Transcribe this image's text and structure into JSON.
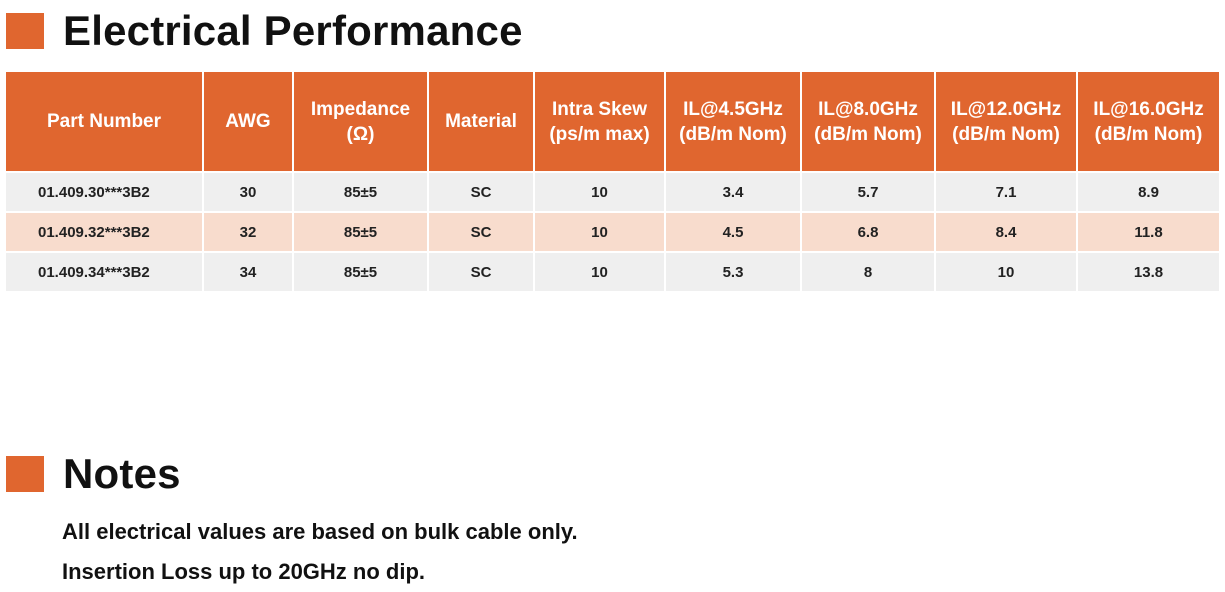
{
  "colors": {
    "accent": "#e0662f",
    "row_light": "#efefef",
    "row_accent": "#f8dccd"
  },
  "headings": {
    "electrical": "Electrical Performance",
    "notes": "Notes"
  },
  "table": {
    "headers": [
      [
        "Part Number"
      ],
      [
        "AWG"
      ],
      [
        "Impedance",
        "(Ω)"
      ],
      [
        "Material"
      ],
      [
        "Intra Skew",
        "(ps/m max)"
      ],
      [
        "IL@4.5GHz",
        "(dB/m Nom)"
      ],
      [
        "IL@8.0GHz",
        "(dB/m Nom)"
      ],
      [
        "IL@12.0GHz",
        "(dB/m Nom)"
      ],
      [
        "IL@16.0GHz",
        "(dB/m Nom)"
      ]
    ],
    "rows": [
      [
        "01.409.30***3B2",
        "30",
        "85±5",
        "SC",
        "10",
        "3.4",
        "5.7",
        "7.1",
        "8.9"
      ],
      [
        "01.409.32***3B2",
        "32",
        "85±5",
        "SC",
        "10",
        "4.5",
        "6.8",
        "8.4",
        "11.8"
      ],
      [
        "01.409.34***3B2",
        "34",
        "85±5",
        "SC",
        "10",
        "5.3",
        "8",
        "10",
        "13.8"
      ]
    ]
  },
  "notes": [
    "All electrical values are based on bulk cable only.",
    "Insertion Loss up to 20GHz no dip."
  ]
}
